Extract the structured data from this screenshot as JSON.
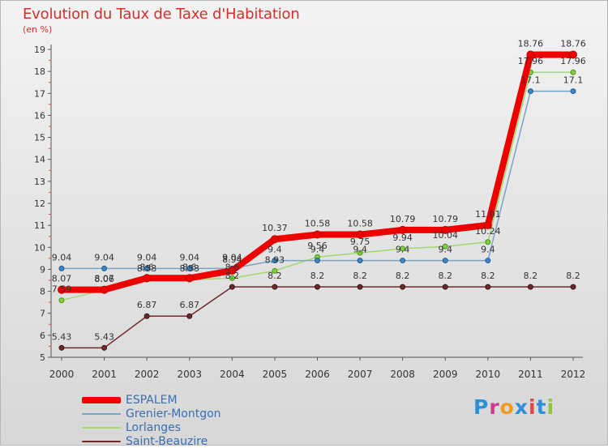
{
  "title": "Evolution du Taux de Taxe d'Habitation",
  "subtitle": "(en %)",
  "logo": {
    "letters": [
      "P",
      "r",
      "o",
      "x",
      "i",
      "t",
      "i"
    ],
    "colors": [
      "#2f8fd8",
      "#d13b8e",
      "#f39a1e",
      "#2f8fd8",
      "#e04848",
      "#2f8fd8",
      "#8cc63f"
    ]
  },
  "chart_data": {
    "type": "line",
    "title": "Evolution du Taux de Taxe d'Habitation",
    "ylabel": "(en %)",
    "xlabel": "",
    "x": [
      "2000",
      "2001",
      "2002",
      "2003",
      "2004",
      "2005",
      "2006",
      "2007",
      "2008",
      "2009",
      "2010",
      "2011",
      "2012"
    ],
    "ylim": [
      5,
      19
    ],
    "yticks": [
      "5",
      "6",
      "7",
      "8",
      "9",
      "10",
      "11",
      "12",
      "13",
      "14",
      "15",
      "16",
      "17",
      "18",
      "19"
    ],
    "grid": false,
    "legend": "bottom-left",
    "series": [
      {
        "name": "ESPALEM",
        "color": "#ee0000",
        "values": [
          8.07,
          8.07,
          8.6,
          8.6,
          8.94,
          10.37,
          10.58,
          10.58,
          10.79,
          10.79,
          11.01,
          18.76,
          18.76
        ],
        "labels": [
          "8.07",
          "8.07",
          "8.6",
          "8.6",
          "8.94",
          "10.37",
          "10.58",
          "10.58",
          "10.79",
          "10.79",
          "11.01",
          "18.76",
          "18.76"
        ]
      },
      {
        "name": "Grenier-Montgon",
        "color": "#7aa3c8",
        "values": [
          9.04,
          9.04,
          9.04,
          9.04,
          9.04,
          9.4,
          9.4,
          9.4,
          9.4,
          9.4,
          9.4,
          17.1,
          17.1
        ],
        "labels": [
          "9.04",
          "9.04",
          "9.04",
          "9.04",
          "9.04",
          "9.4",
          "9.4",
          "9.4",
          "9.4",
          "9.4",
          "9.4",
          "17.1",
          "17.1"
        ]
      },
      {
        "name": "Lorlanges",
        "color": "#a4d96c",
        "values": [
          7.59,
          8.06,
          8.53,
          8.53,
          8.6,
          8.93,
          9.56,
          9.75,
          9.94,
          10.04,
          10.24,
          17.96,
          17.96
        ],
        "labels": [
          "7.59",
          "8.06",
          "8.53",
          "8.53",
          "8.6",
          "8.93",
          "9.56",
          "9.75",
          "9.94",
          "10.04",
          "10.24",
          "17.96",
          "17.96"
        ]
      },
      {
        "name": "Saint-Beauzire",
        "color": "#6e2a2a",
        "values": [
          5.43,
          5.43,
          6.87,
          6.87,
          8.2,
          8.2,
          8.2,
          8.2,
          8.2,
          8.2,
          8.2,
          8.2,
          8.2
        ],
        "labels": [
          "5.43",
          "5.43",
          "6.87",
          "6.87",
          "8.2",
          "8.2",
          "8.2",
          "8.2",
          "8.2",
          "8.2",
          "8.2",
          "8.2",
          "8.2"
        ]
      }
    ]
  }
}
